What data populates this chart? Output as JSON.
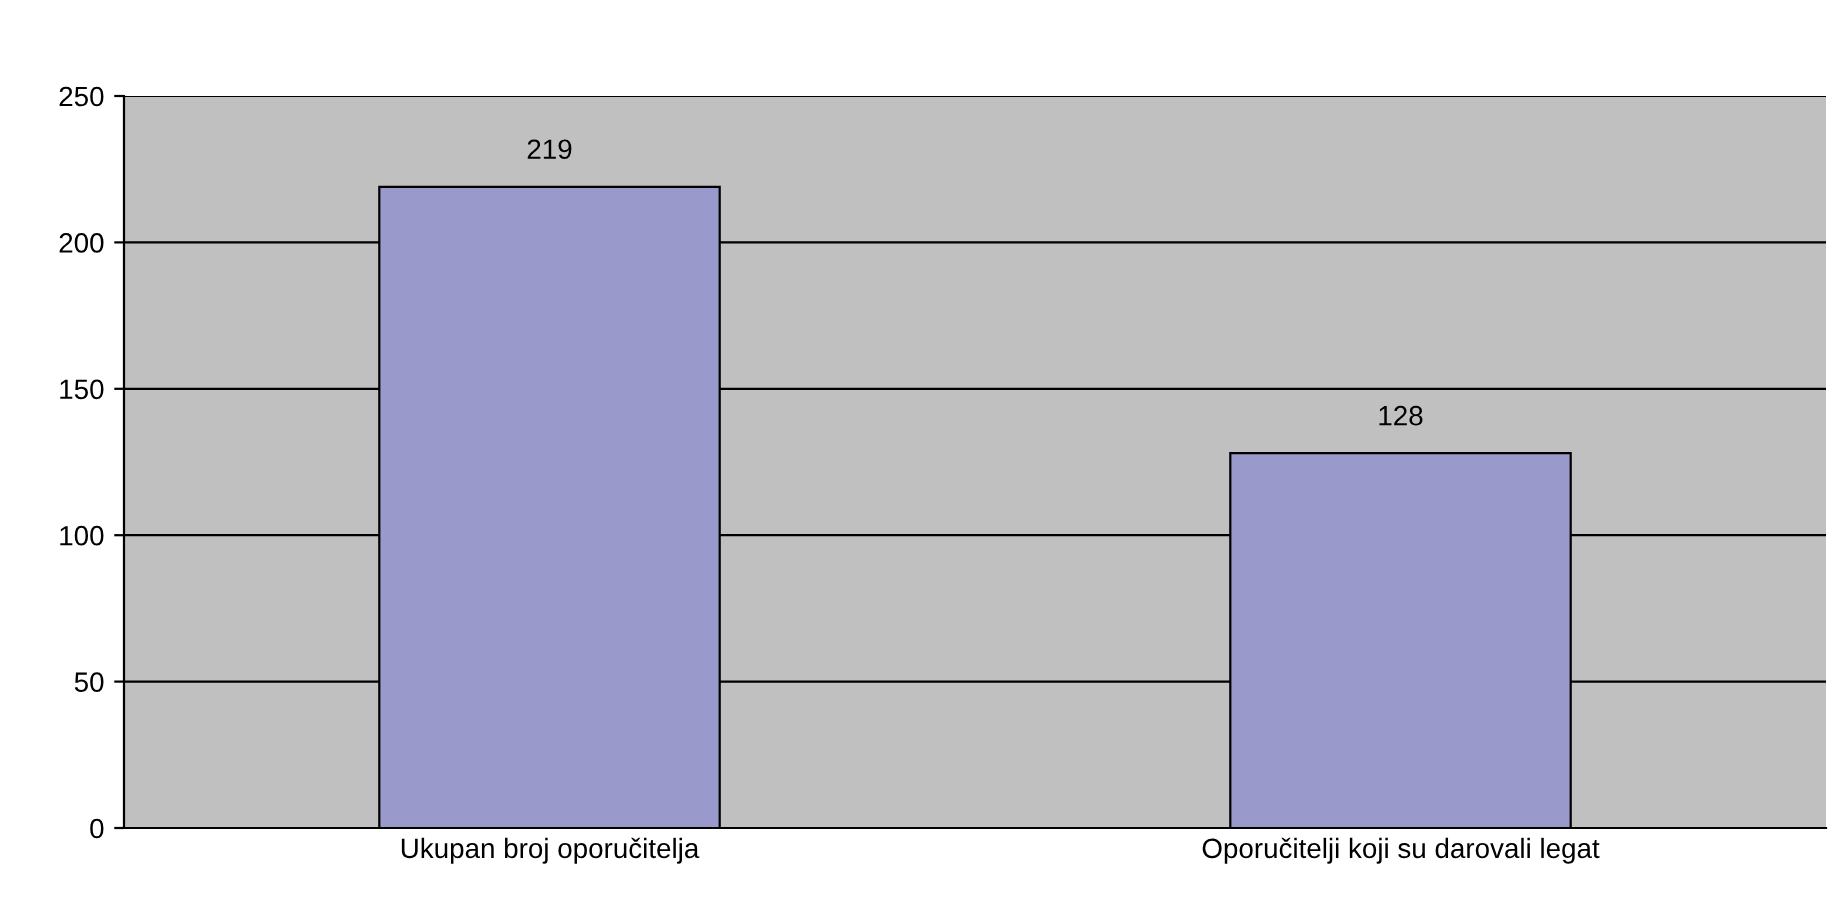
{
  "chart_data": {
    "type": "bar",
    "categories": [
      "Ukupan broj oporučitelja",
      "Oporučitelji koji su darovali legat"
    ],
    "values": [
      219,
      128
    ],
    "color": "#9999cc",
    "ylim": [
      0,
      250
    ],
    "yticks": [
      0,
      50,
      100,
      150,
      200,
      250
    ],
    "grid": "y",
    "data_labels": true
  }
}
